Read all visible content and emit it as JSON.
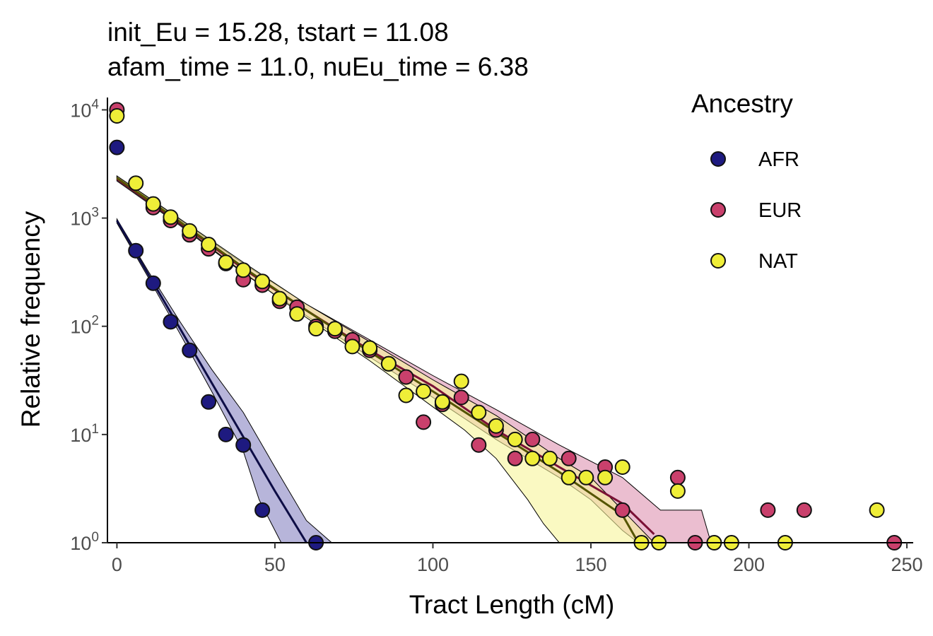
{
  "title_lines": [
    "init_Eu = 15.28, tstart = 11.08",
    "afam_time = 11.0, nuEu_time = 6.38"
  ],
  "chart_data": {
    "type": "scatter",
    "title": "init_Eu = 15.28, tstart = 11.08\nafam_time = 11.0, nuEu_time = 6.38",
    "xlabel": "Tract Length (cM)",
    "ylabel": "Relative frequency",
    "xlim": [
      -3,
      252
    ],
    "ylim": [
      1,
      13000
    ],
    "y_scale": "log10",
    "x_ticks": [
      0,
      50,
      100,
      150,
      200,
      250
    ],
    "y_ticks": [
      {
        "value": 1,
        "base": "10",
        "exp": "0"
      },
      {
        "value": 10,
        "base": "10",
        "exp": "1"
      },
      {
        "value": 100,
        "base": "10",
        "exp": "2"
      },
      {
        "value": 1000,
        "base": "10",
        "exp": "3"
      },
      {
        "value": 10000,
        "base": "10",
        "exp": "4"
      }
    ],
    "grid": false,
    "legend": {
      "title": "Ancestry",
      "position": "top-right"
    },
    "series": [
      {
        "name": "AFR",
        "color": "#1e1a80",
        "line_color": "#0d0d45",
        "band_color": "#8784c2",
        "points": [
          [
            0,
            4500
          ],
          [
            6,
            500
          ],
          [
            11.5,
            250
          ],
          [
            17,
            110
          ],
          [
            23,
            60
          ],
          [
            29,
            20
          ],
          [
            34.5,
            10
          ],
          [
            40,
            8
          ],
          [
            46,
            2
          ],
          [
            63,
            1
          ]
        ],
        "fit": [
          [
            0,
            950
          ],
          [
            10,
            300
          ],
          [
            20,
            95
          ],
          [
            30,
            30
          ],
          [
            40,
            9.5
          ],
          [
            50,
            3
          ],
          [
            60,
            1
          ]
        ],
        "band_upper": [
          [
            0,
            980
          ],
          [
            10,
            320
          ],
          [
            20,
            110
          ],
          [
            30,
            40
          ],
          [
            40,
            16
          ],
          [
            50,
            5
          ],
          [
            60,
            1.6
          ],
          [
            68,
            1
          ]
        ],
        "band_lower": [
          [
            0,
            900
          ],
          [
            10,
            280
          ],
          [
            20,
            85
          ],
          [
            30,
            25
          ],
          [
            40,
            7
          ],
          [
            45,
            2.5
          ],
          [
            52,
            1
          ]
        ]
      },
      {
        "name": "EUR",
        "color": "#c9406c",
        "line_color": "#7a1035",
        "band_color": "#dd92b0",
        "points": [
          [
            0,
            10000
          ],
          [
            11.5,
            1250
          ],
          [
            17,
            950
          ],
          [
            23,
            700
          ],
          [
            29,
            520
          ],
          [
            34.5,
            380
          ],
          [
            40,
            270
          ],
          [
            46,
            240
          ],
          [
            51.5,
            170
          ],
          [
            57,
            150
          ],
          [
            63,
            100
          ],
          [
            69,
            90
          ],
          [
            74.5,
            75
          ],
          [
            80,
            60
          ],
          [
            86,
            45
          ],
          [
            91.5,
            34
          ],
          [
            97,
            13
          ],
          [
            103,
            19
          ],
          [
            109,
            22
          ],
          [
            114.5,
            8
          ],
          [
            120,
            11
          ],
          [
            126,
            6
          ],
          [
            131.5,
            9
          ],
          [
            143,
            6
          ],
          [
            154.5,
            5
          ],
          [
            160,
            2
          ],
          [
            177.5,
            4
          ],
          [
            183,
            1
          ],
          [
            206,
            2
          ],
          [
            217.5,
            2
          ],
          [
            246,
            1
          ]
        ],
        "fit": [
          [
            0,
            2300
          ],
          [
            20,
            900
          ],
          [
            40,
            340
          ],
          [
            60,
            140
          ],
          [
            80,
            60
          ],
          [
            100,
            28
          ],
          [
            120,
            11
          ],
          [
            140,
            5
          ],
          [
            160,
            2.3
          ],
          [
            170,
            1.2
          ]
        ],
        "band_upper": [
          [
            0,
            2450
          ],
          [
            20,
            960
          ],
          [
            40,
            380
          ],
          [
            60,
            160
          ],
          [
            80,
            75
          ],
          [
            100,
            35
          ],
          [
            120,
            17
          ],
          [
            140,
            8
          ],
          [
            160,
            4
          ],
          [
            172,
            2
          ],
          [
            185,
            2
          ],
          [
            188,
            1
          ]
        ],
        "band_lower": [
          [
            0,
            2200
          ],
          [
            20,
            850
          ],
          [
            40,
            310
          ],
          [
            60,
            125
          ],
          [
            80,
            52
          ],
          [
            100,
            22
          ],
          [
            120,
            9
          ],
          [
            140,
            4
          ],
          [
            150,
            2.5
          ],
          [
            160,
            1.3
          ],
          [
            165,
            1
          ]
        ]
      },
      {
        "name": "NAT",
        "color": "#efee38",
        "line_color": "#545400",
        "band_color": "#f6f59a",
        "points": [
          [
            0,
            8800
          ],
          [
            6,
            2100
          ],
          [
            11.5,
            1350
          ],
          [
            17,
            1020
          ],
          [
            23,
            760
          ],
          [
            29,
            570
          ],
          [
            34.5,
            390
          ],
          [
            40,
            330
          ],
          [
            46,
            260
          ],
          [
            51.5,
            180
          ],
          [
            57,
            130
          ],
          [
            63,
            95
          ],
          [
            69,
            95
          ],
          [
            74.5,
            65
          ],
          [
            80,
            63
          ],
          [
            86,
            45
          ],
          [
            91.5,
            23
          ],
          [
            97,
            25
          ],
          [
            103,
            20
          ],
          [
            109,
            31
          ],
          [
            114.5,
            16
          ],
          [
            120,
            12
          ],
          [
            126,
            9
          ],
          [
            131.5,
            6
          ],
          [
            137,
            6
          ],
          [
            143,
            4
          ],
          [
            148.5,
            4
          ],
          [
            154.5,
            4
          ],
          [
            160,
            5
          ],
          [
            166,
            1
          ],
          [
            171.5,
            1
          ],
          [
            177.5,
            3
          ],
          [
            189,
            1
          ],
          [
            194.5,
            1
          ],
          [
            211.5,
            1
          ],
          [
            240.5,
            2
          ]
        ],
        "fit": [
          [
            0,
            2350
          ],
          [
            20,
            920
          ],
          [
            40,
            350
          ],
          [
            60,
            140
          ],
          [
            80,
            58
          ],
          [
            100,
            25
          ],
          [
            120,
            10.5
          ],
          [
            140,
            4.5
          ],
          [
            160,
            1.8
          ],
          [
            165,
            1
          ]
        ],
        "band_upper": [
          [
            0,
            2450
          ],
          [
            20,
            980
          ],
          [
            40,
            390
          ],
          [
            60,
            160
          ],
          [
            80,
            72
          ],
          [
            100,
            32
          ],
          [
            120,
            15
          ],
          [
            140,
            6
          ],
          [
            150,
            4
          ],
          [
            160,
            2
          ],
          [
            170,
            1
          ]
        ],
        "band_lower": [
          [
            0,
            2250
          ],
          [
            20,
            870
          ],
          [
            40,
            315
          ],
          [
            60,
            120
          ],
          [
            80,
            48
          ],
          [
            100,
            18
          ],
          [
            110,
            11
          ],
          [
            120,
            6
          ],
          [
            130,
            2.5
          ],
          [
            135,
            1.5
          ],
          [
            140,
            1
          ]
        ]
      }
    ]
  }
}
